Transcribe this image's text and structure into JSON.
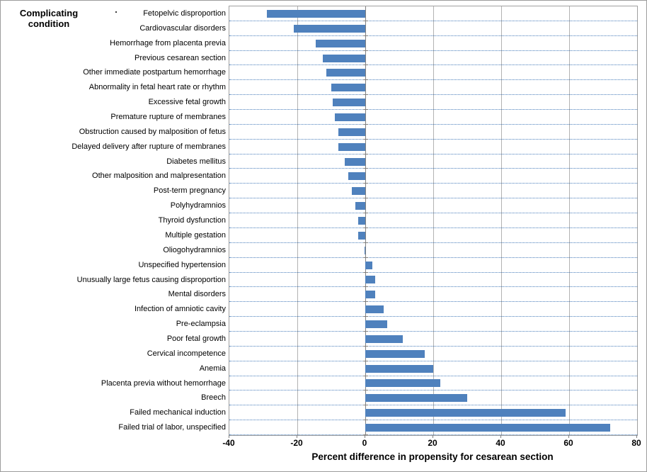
{
  "title": "Complicating condition",
  "chart_data": {
    "type": "bar",
    "orientation": "horizontal",
    "title": "Complicating condition",
    "xlabel": "Percent difference in propensity for cesarean section",
    "xlim": [
      -40,
      80
    ],
    "xticks": [
      -40,
      -20,
      0,
      20,
      40,
      60,
      80
    ],
    "legend": "none",
    "grid": {
      "horizontal": "dotted blue row separators",
      "vertical": "solid gray lines at each x tick"
    },
    "bar_color": "#4F81BD",
    "categories": [
      "Fetopelvic disproportion",
      "Cardiovascular disorders",
      "Hemorrhage from placenta previa",
      "Previous cesarean section",
      "Other immediate postpartum hemorrhage",
      "Abnormality in fetal heart rate or rhythm",
      "Excessive fetal growth",
      "Premature rupture of membranes",
      "Obstruction caused by malposition of fetus",
      "Delayed delivery after rupture of membranes",
      "Diabetes mellitus",
      "Other malposition and malpresentation",
      "Post-term pregnancy",
      "Polyhydramnios",
      "Thyroid dysfunction",
      "Multiple gestation",
      "Oliogohydramnios",
      "Unspecified hypertension",
      "Unusually large fetus causing disproportion",
      "Mental disorders",
      "Infection of amniotic cavity",
      "Pre-eclampsia",
      "Poor fetal growth",
      "Cervical incompetence",
      "Anemia",
      "Placenta previa without hemorrhage",
      "Breech",
      "Failed mechanical induction",
      "Failed trial of labor, unspecified"
    ],
    "values": [
      -29,
      -21,
      -14.5,
      -12.5,
      -11.5,
      -10,
      -9.5,
      -9,
      -8,
      -8,
      -6,
      -5,
      -4,
      -3,
      -2,
      -2,
      -0.3,
      2,
      3,
      3,
      5.5,
      6.5,
      11,
      17.5,
      20,
      22,
      30,
      59,
      72
    ]
  }
}
